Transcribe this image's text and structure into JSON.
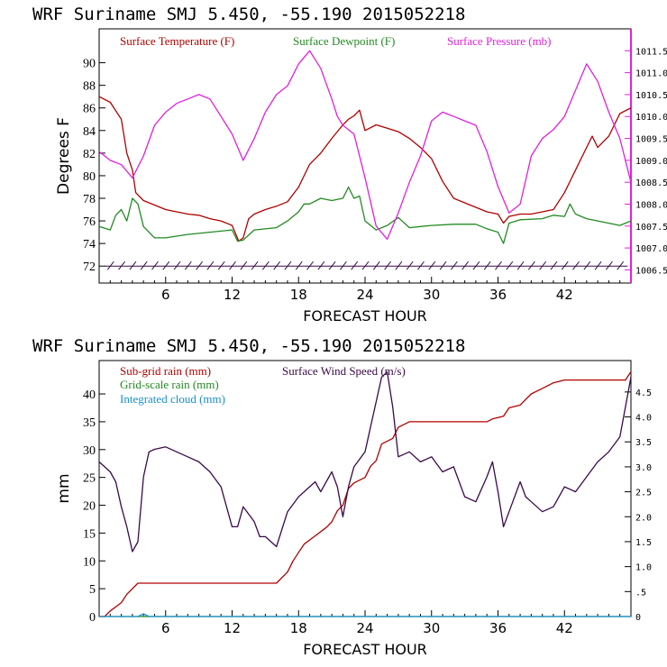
{
  "chart_data": [
    {
      "type": "line",
      "header": "WRF   Suriname SMJ   5.450, -55.190  2015052218",
      "xlabel": "FORECAST HOUR",
      "ylabel": "Degrees F",
      "xlim": [
        0,
        48
      ],
      "ylim": [
        70.5,
        93
      ],
      "y2lim": [
        1006.2,
        1012.0
      ],
      "xticks": [
        "6",
        "12",
        "18",
        "24",
        "30",
        "36",
        "42"
      ],
      "yticks": [
        "72",
        "74",
        "76",
        "78",
        "80",
        "82",
        "84",
        "86",
        "88",
        "90"
      ],
      "y2ticks": [
        "1006.5",
        "1007.0",
        "1007.5",
        "1008.0",
        "1008.5",
        "1009.0",
        "1009.5",
        "1010.0",
        "1010.5",
        "1011.0",
        "1011.5"
      ],
      "colors": {
        "temperature": "#b00000",
        "dewpoint": "#228B22",
        "pressure": "#e020e0",
        "wind": "#3a0a4a",
        "frame": "#000000",
        "right_axis": "#e020e0"
      },
      "series": [
        {
          "name": "Surface Temperature (F)",
          "axis": "left",
          "x": [
            0,
            1,
            2,
            2.5,
            3,
            3.3,
            4,
            5,
            6,
            7,
            8,
            9,
            10,
            11,
            12,
            12.6,
            13,
            13.5,
            14,
            15,
            16,
            17,
            18,
            18.5,
            19,
            20,
            21,
            22,
            22.5,
            23,
            23.5,
            24,
            25,
            26,
            27,
            28,
            29,
            30,
            31,
            32,
            33,
            34,
            35,
            36,
            36.5,
            37,
            38,
            39,
            40,
            41,
            42,
            43,
            44,
            44.5,
            45,
            46,
            47,
            48
          ],
          "values": [
            87,
            86.5,
            85,
            82,
            80.5,
            78.5,
            77.8,
            77.4,
            77,
            76.8,
            76.6,
            76.5,
            76.2,
            76,
            75.6,
            74.2,
            74.5,
            76.2,
            76.6,
            77,
            77.3,
            77.7,
            79,
            80,
            81,
            82,
            83.3,
            84.5,
            85,
            85.3,
            85.8,
            84,
            84.5,
            84.2,
            83.9,
            83.3,
            82.5,
            81.5,
            79.5,
            78,
            77.6,
            77.2,
            76.8,
            76.6,
            75.8,
            76.4,
            76.6,
            76.6,
            76.8,
            77,
            78.5,
            80.5,
            82.5,
            83.5,
            82.5,
            83.5,
            85.5,
            86
          ]
        },
        {
          "name": "Surface Dewpoint (F)",
          "axis": "left",
          "x": [
            0,
            1,
            1.5,
            2,
            2.5,
            3,
            3.5,
            4,
            5,
            6,
            8,
            10,
            12,
            12.5,
            13,
            14,
            16,
            17,
            18,
            18.5,
            19,
            20,
            21,
            22,
            22.5,
            23,
            23.5,
            24,
            25,
            26,
            27,
            28,
            29,
            30,
            32,
            34,
            35,
            36,
            36.5,
            37,
            38,
            40,
            41,
            42,
            42.5,
            43,
            44,
            46,
            47,
            48
          ],
          "values": [
            75.5,
            75.2,
            76.5,
            77,
            76,
            78,
            77.5,
            75.5,
            74.5,
            74.5,
            74.8,
            75,
            75.2,
            74.2,
            74.3,
            75.2,
            75.4,
            76,
            76.8,
            77.5,
            77.5,
            78,
            77.8,
            78,
            79,
            78,
            78.2,
            76,
            75.2,
            75.6,
            76.3,
            75.4,
            75.5,
            75.6,
            75.7,
            75.7,
            75.3,
            75,
            74,
            75.8,
            76.1,
            76.2,
            76.5,
            76.4,
            77.5,
            76.6,
            76.2,
            75.8,
            75.6,
            76
          ]
        },
        {
          "name": "Surface Pressure (mb)",
          "axis": "right",
          "x": [
            0,
            1,
            2,
            3,
            4,
            5,
            6,
            7,
            8,
            9,
            10,
            11,
            12,
            13,
            14,
            15,
            16,
            17,
            18,
            19,
            20,
            21,
            21.5,
            22,
            23,
            24,
            25,
            26,
            27,
            28,
            29,
            30,
            31,
            32,
            33,
            34,
            35,
            36,
            37,
            38,
            39,
            40,
            41,
            42,
            43,
            44,
            45,
            46,
            47,
            48
          ],
          "values": [
            1009.2,
            1009.0,
            1008.9,
            1008.6,
            1009.1,
            1009.8,
            1010.1,
            1010.3,
            1010.4,
            1010.5,
            1010.4,
            1010.0,
            1009.6,
            1009.0,
            1009.5,
            1010.1,
            1010.5,
            1010.7,
            1011.2,
            1011.5,
            1011.1,
            1010.4,
            1010.0,
            1009.8,
            1009.6,
            1008.6,
            1007.5,
            1007.2,
            1007.8,
            1008.5,
            1009.1,
            1009.9,
            1010.1,
            1010.0,
            1009.9,
            1009.8,
            1009.2,
            1008.4,
            1007.8,
            1008.0,
            1009.1,
            1009.5,
            1009.7,
            1010.0,
            1010.6,
            1011.2,
            1010.8,
            1010.1,
            1009.5,
            1008.5
          ]
        }
      ],
      "wind_barbs": "wind barbs along 72 °F line"
    },
    {
      "type": "line",
      "header": "WRF   Suriname SMJ   5.450, -55.190  2015052218",
      "xlabel": "FORECAST HOUR",
      "ylabel": "mm",
      "xlim": [
        0,
        48
      ],
      "ylim": [
        0,
        46
      ],
      "y2lim": [
        0,
        5.13
      ],
      "xticks": [
        "6",
        "12",
        "18",
        "24",
        "30",
        "36",
        "42"
      ],
      "yticks": [
        "0",
        "5",
        "10",
        "15",
        "20",
        "25",
        "30",
        "35",
        "40"
      ],
      "y2ticks": [
        "0",
        ".5",
        "1.0",
        "1.5",
        "2.0",
        "2.5",
        "3.0",
        "3.5",
        "4.0",
        "4.5"
      ],
      "series": [
        {
          "name": "Sub-grid rain (mm)",
          "axis": "left",
          "x": [
            0,
            0.5,
            1,
            2,
            2.5,
            3.5,
            16,
            17,
            17.5,
            18.5,
            19.5,
            20.5,
            21,
            21.5,
            22,
            22.5,
            23,
            24,
            24.5,
            25,
            25.5,
            26.5,
            27,
            28,
            29,
            33,
            35,
            35.5,
            36.5,
            37,
            38,
            38.5,
            39,
            40,
            41,
            42,
            43,
            47.5,
            48
          ],
          "values": [
            0,
            0,
            1,
            2.5,
            4,
            6,
            6,
            8,
            10,
            13,
            14.5,
            16,
            17,
            19,
            20,
            23,
            24,
            25,
            27,
            28,
            31,
            32,
            34,
            35,
            35,
            35,
            35,
            35.5,
            36,
            37.5,
            38,
            39,
            40,
            41,
            42,
            42.5,
            42.5,
            42.5,
            44
          ]
        },
        {
          "name": "Grid-scale rain (mm)",
          "axis": "left",
          "x": [
            0,
            48
          ],
          "values": [
            0,
            0
          ]
        },
        {
          "name": "Integrated cloud (mm)",
          "axis": "left",
          "x": [
            0,
            3.5,
            4,
            4.5,
            48
          ],
          "values": [
            0,
            0,
            0.5,
            0,
            0
          ]
        },
        {
          "name": "Surface Wind Speed (m/s)",
          "axis": "right",
          "x": [
            0,
            0.5,
            1,
            1.5,
            2,
            2.5,
            3,
            3.5,
            4,
            4.5,
            5,
            6,
            7,
            8,
            9,
            10,
            11,
            12,
            12.5,
            13,
            14,
            14.5,
            15,
            16,
            17,
            18,
            19,
            19.5,
            20,
            21,
            21.5,
            22,
            22.5,
            23,
            24,
            24.5,
            25,
            25.5,
            26,
            26.5,
            27,
            28,
            29,
            30,
            31,
            32,
            33,
            34,
            35,
            35.5,
            36,
            36.5,
            37,
            38,
            38.5,
            39,
            40,
            41,
            42,
            43,
            44,
            45,
            46,
            47,
            47.5,
            48
          ],
          "values": [
            3.1,
            3.0,
            2.9,
            2.7,
            2.2,
            1.8,
            1.3,
            1.5,
            2.8,
            3.3,
            3.35,
            3.4,
            3.3,
            3.2,
            3.1,
            2.9,
            2.6,
            1.8,
            1.8,
            2.2,
            1.9,
            1.6,
            1.6,
            1.4,
            2.1,
            2.4,
            2.6,
            2.7,
            2.5,
            2.9,
            2.6,
            2.0,
            2.6,
            3.0,
            3.3,
            3.8,
            4.3,
            4.8,
            4.9,
            4.2,
            3.2,
            3.3,
            3.1,
            3.2,
            2.9,
            3.0,
            2.4,
            2.3,
            2.8,
            3.1,
            2.5,
            1.8,
            2.1,
            2.7,
            2.4,
            2.3,
            2.1,
            2.2,
            2.6,
            2.5,
            2.8,
            3.1,
            3.3,
            3.6,
            4.2,
            4.8
          ]
        }
      ]
    }
  ]
}
